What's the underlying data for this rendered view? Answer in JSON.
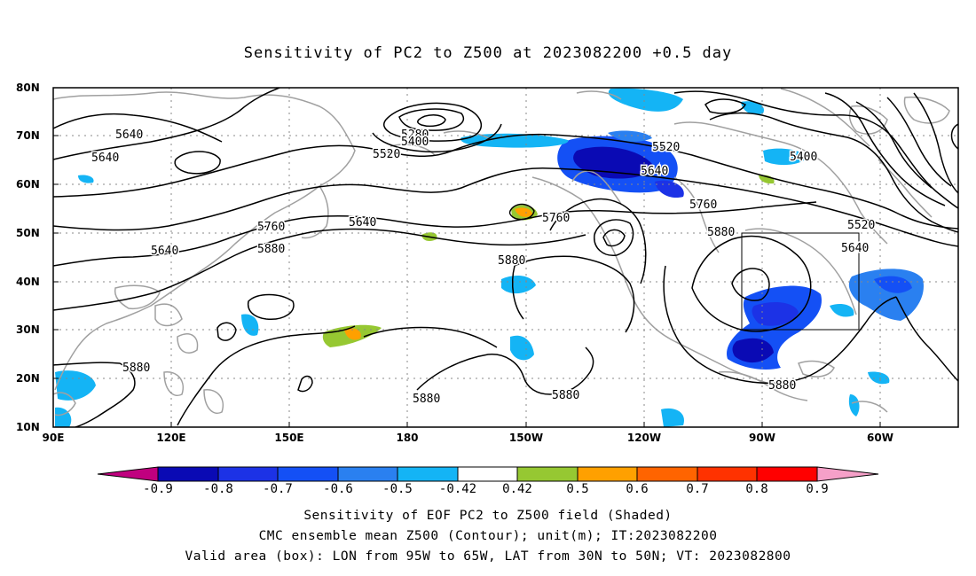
{
  "title": "Sensitivity of PC2 to Z500 at 2023082200 +0.5 day",
  "lat_labels": [
    "80N",
    "70N",
    "60N",
    "50N",
    "40N",
    "30N",
    "20N",
    "10N"
  ],
  "lon_labels": [
    "90E",
    "120E",
    "150E",
    "180",
    "150W",
    "120W",
    "90W",
    "60W"
  ],
  "contour_labels": [
    {
      "text": "5640"
    },
    {
      "text": "5640"
    },
    {
      "text": "5280"
    },
    {
      "text": "5400"
    },
    {
      "text": "5520"
    },
    {
      "text": "5520"
    },
    {
      "text": "5640"
    },
    {
      "text": "5400"
    },
    {
      "text": "5640"
    },
    {
      "text": "5760"
    },
    {
      "text": "5760"
    },
    {
      "text": "5880"
    },
    {
      "text": "5640"
    },
    {
      "text": "5880"
    },
    {
      "text": "5760"
    },
    {
      "text": "5880"
    },
    {
      "text": "5520"
    },
    {
      "text": "5640"
    },
    {
      "text": "5880"
    },
    {
      "text": "5880"
    },
    {
      "text": "5880"
    },
    {
      "text": "5880"
    }
  ],
  "colorbar": {
    "labels": [
      "-0.9",
      "-0.8",
      "-0.7",
      "-0.6",
      "-0.5",
      "-0.42",
      "0.42",
      "0.5",
      "0.6",
      "0.7",
      "0.8",
      "0.9"
    ],
    "colors": [
      "#c0007f",
      "#0a0ab4",
      "#1c32e6",
      "#1450f5",
      "#2a80f0",
      "#14b4f5",
      "#ffffff",
      "#96c832",
      "#ffa000",
      "#ff6400",
      "#ff3200",
      "#ff0000",
      "#f5a0c8"
    ]
  },
  "captions": [
    "Sensitivity of EOF PC2 to Z500 field (Shaded)",
    "CMC ensemble mean Z500 (Contour); unit(m); IT:2023082200",
    "Valid area (box): LON from 95W to 65W, LAT from 30N to 50N; VT: 2023082800"
  ],
  "colors": {
    "contour": "#000000",
    "coast": "#a0a0a0",
    "grid": "#888888",
    "box": "#000000"
  }
}
